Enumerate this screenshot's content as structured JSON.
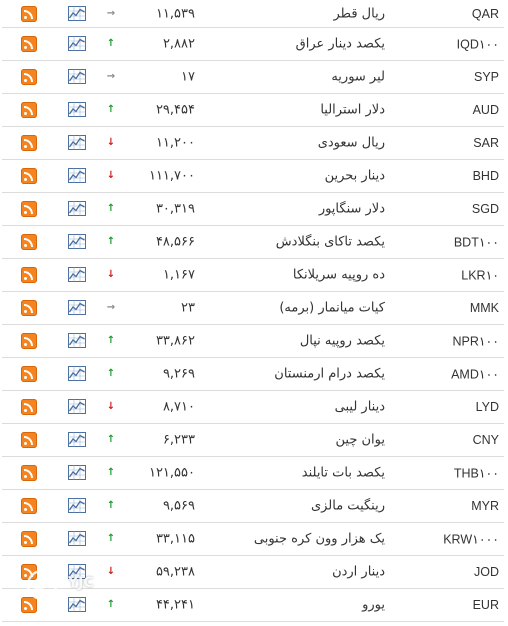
{
  "rows": [
    {
      "code": "QAR",
      "name": "ریال قطر",
      "price": "۱۱,۵۳۹",
      "trend": "flat"
    },
    {
      "code": "IQD۱۰۰",
      "name": "یکصد دینار عراق",
      "price": "۲,۸۸۲",
      "trend": "up"
    },
    {
      "code": "SYP",
      "name": "لیر سوریه",
      "price": "۱۷",
      "trend": "flat"
    },
    {
      "code": "AUD",
      "name": "دلار استرالیا",
      "price": "۲۹,۴۵۴",
      "trend": "up"
    },
    {
      "code": "SAR",
      "name": "ریال سعودی",
      "price": "۱۱,۲۰۰",
      "trend": "down"
    },
    {
      "code": "BHD",
      "name": "دینار بحرین",
      "price": "۱۱۱,۷۰۰",
      "trend": "down"
    },
    {
      "code": "SGD",
      "name": "دلار سنگاپور",
      "price": "۳۰,۳۱۹",
      "trend": "up"
    },
    {
      "code": "BDT۱۰۰",
      "name": "یکصد تاکای بنگلادش",
      "price": "۴۸,۵۶۶",
      "trend": "up"
    },
    {
      "code": "LKR۱۰",
      "name": "ده روپیه سریلانکا",
      "price": "۱,۱۶۷",
      "trend": "down"
    },
    {
      "code": "MMK",
      "name": "کیات میانمار (برمه)",
      "price": "۲۳",
      "trend": "flat"
    },
    {
      "code": "NPR۱۰۰",
      "name": "یکصد روپیه نپال",
      "price": "۳۳,۸۶۲",
      "trend": "up"
    },
    {
      "code": "AMD۱۰۰",
      "name": "یکصد درام ارمنستان",
      "price": "۹,۲۶۹",
      "trend": "up"
    },
    {
      "code": "LYD",
      "name": "دینار لیبی",
      "price": "۸,۷۱۰",
      "trend": "down"
    },
    {
      "code": "CNY",
      "name": "یوان چین",
      "price": "۶,۲۳۳",
      "trend": "up"
    },
    {
      "code": "THB۱۰۰",
      "name": "یکصد بات تایلند",
      "price": "۱۲۱,۵۵۰",
      "trend": "up"
    },
    {
      "code": "MYR",
      "name": "رینگیت مالزی",
      "price": "۹,۵۶۹",
      "trend": "up"
    },
    {
      "code": "KRW۱۰۰۰",
      "name": "یک هزار وون کره جنوبی",
      "price": "۳۳,۱۱۵",
      "trend": "up"
    },
    {
      "code": "JOD",
      "name": "دینار اردن",
      "price": "۵۹,۲۳۸",
      "trend": "down"
    },
    {
      "code": "EUR",
      "name": "یورو",
      "price": "۴۴,۲۴۱",
      "trend": "up"
    }
  ],
  "icons": {
    "feed": "rss-feed-icon",
    "chart": "chart-icon",
    "trend_up": "arrow-up-icon",
    "trend_down": "arrow-down-icon",
    "trend_flat": "arrow-right-icon"
  },
  "colors": {
    "rss": "#f48420",
    "up": "#1f9b2d",
    "down": "#cf1b1b",
    "flat": "#8a8a8a",
    "chart_icon": "#4a6fa0"
  },
  "watermark": {
    "text": "YJC"
  }
}
